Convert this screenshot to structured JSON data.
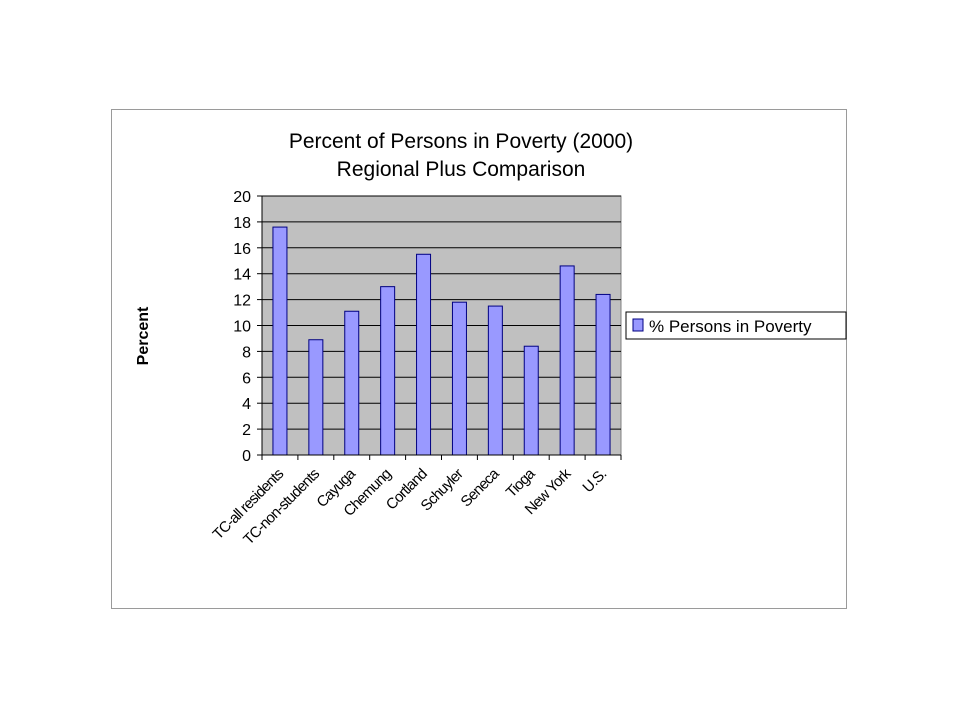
{
  "chart_data": {
    "type": "bar",
    "title": [
      "Percent of Persons in Poverty (2000)",
      "Regional Plus Comparison"
    ],
    "ylabel": "Percent",
    "xlabel": "",
    "ylim": [
      0,
      20
    ],
    "yticks": [
      0,
      2,
      4,
      6,
      8,
      10,
      12,
      14,
      16,
      18,
      20
    ],
    "grid": true,
    "legend_position": "right",
    "categories": [
      "TC-all residents",
      "TC-non-students",
      "Cayuga",
      "Chemung",
      "Cortland",
      "Schuyler",
      "Seneca",
      "Tioga",
      "New York",
      "U.S."
    ],
    "series": [
      {
        "name": "% Persons in Poverty",
        "values": [
          17.6,
          8.9,
          11.1,
          13.0,
          15.5,
          11.8,
          11.5,
          8.4,
          14.6,
          12.4
        ]
      }
    ],
    "colors": {
      "bar": "#9999ff",
      "bar_stroke": "#000080",
      "plot_bg": "#c0c0c0",
      "grid": "#000000"
    }
  }
}
